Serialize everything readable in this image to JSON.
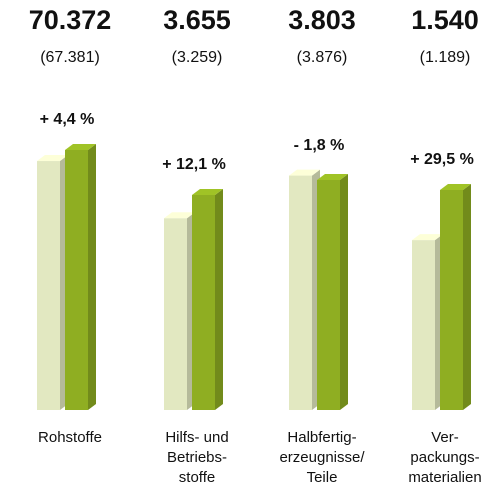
{
  "chart_data": {
    "type": "bar3d",
    "categories": [
      [
        "Rohstoffe"
      ],
      [
        "Hilfs- und",
        "Betriebs-",
        "stoffe"
      ],
      [
        "Halbfertig-",
        "erzeugnisse/",
        "Teile"
      ],
      [
        "Ver-",
        "packungs-",
        "materialien"
      ]
    ],
    "series": [
      {
        "color": "#8fae22",
        "values": [
          70372,
          3655,
          3803,
          1540
        ],
        "value_labels": [
          "70.372",
          "3.655",
          "3.803",
          "1.540"
        ]
      },
      {
        "color": "#e2e8c1",
        "values": [
          67381,
          3259,
          3876,
          1189
        ],
        "value_labels": [
          "(67.381)",
          "(3.259)",
          "(3.876)",
          "(1.189)"
        ]
      }
    ],
    "changes": {
      "values": [
        4.4,
        12.1,
        -1.8,
        29.5
      ],
      "value_labels": [
        "+ 4,4 %",
        "+ 12,1 %",
        "- 1,8 %",
        "+ 29,5 %"
      ]
    }
  }
}
